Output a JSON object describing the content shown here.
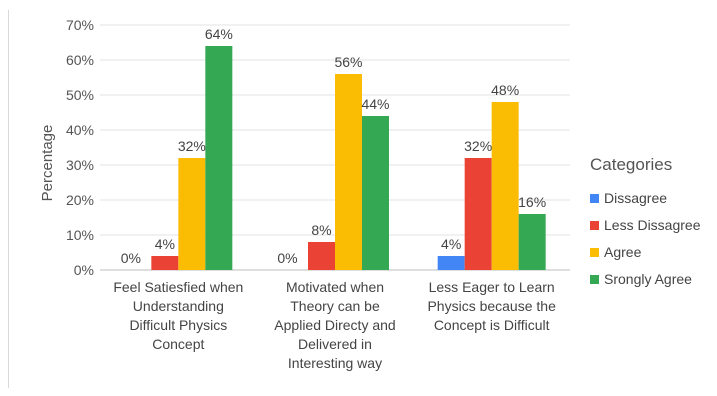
{
  "chart_data": {
    "type": "bar",
    "title": "",
    "xlabel": "",
    "ylabel": "Percentage",
    "ylim": [
      0,
      70
    ],
    "yticks": [
      "0%",
      "10%",
      "20%",
      "30%",
      "40%",
      "50%",
      "60%",
      "70%"
    ],
    "grid": true,
    "legend_position": "right",
    "legend_title": "Categories",
    "categories": [
      [
        "Feel Satiesfied when",
        "Understanding",
        "Difficult Physics",
        "Concept"
      ],
      [
        "Motivated when",
        "Theory can be",
        "Applied Directy and",
        "Delivered in",
        "Interesting way"
      ],
      [
        "Less Eager to Learn",
        "Physics because the",
        "Concept is Difficult"
      ]
    ],
    "series": [
      {
        "name": "Dissagree",
        "color": "#4285f4",
        "values": [
          0,
          0,
          4
        ]
      },
      {
        "name": "Less Dissagree",
        "color": "#ea4335",
        "values": [
          4,
          8,
          32
        ]
      },
      {
        "name": "Agree",
        "color": "#fbbc04",
        "values": [
          32,
          56,
          48
        ]
      },
      {
        "name": "Srongly Agree",
        "color": "#34a853",
        "values": [
          64,
          44,
          16
        ]
      }
    ],
    "data_labels": [
      [
        "0%",
        "0%",
        "4%"
      ],
      [
        "4%",
        "8%",
        "32%"
      ],
      [
        "32%",
        "56%",
        "48%"
      ],
      [
        "64%",
        "44%",
        "16%"
      ]
    ]
  }
}
